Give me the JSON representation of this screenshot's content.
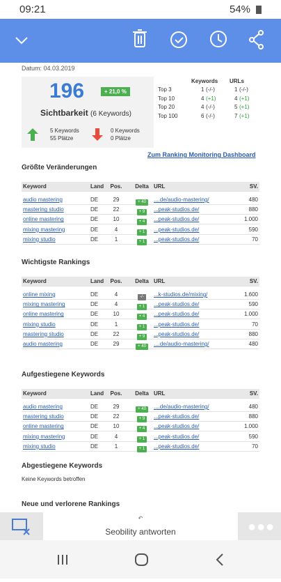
{
  "status": {
    "time": "09:21",
    "battery": "54%"
  },
  "email": {
    "date": "Datum: 04.03.2019",
    "summary": {
      "score": "196",
      "change": "+ 21,0 %",
      "label": "Sichtbarkeit",
      "keywords": "(6 Keywords)",
      "up": {
        "keywords": "5 Keywords",
        "places": "55 Plätze"
      },
      "down": {
        "keywords": "0 Keywords",
        "places": "0 Plätze"
      }
    },
    "tops": {
      "headers": [
        "Keywords",
        "URLs"
      ],
      "rows": [
        [
          "Top 3",
          "1",
          "(-/-)",
          "1",
          "(-/-)"
        ],
        [
          "Top 10",
          "4",
          "(+1)",
          "4",
          "(+1)"
        ],
        [
          "Top 20",
          "4",
          "(-/-)",
          "5",
          "(+1)"
        ],
        [
          "Top 100",
          "6",
          "(-/-)",
          "7",
          "(+1)"
        ]
      ]
    },
    "dashboard_link": "Zum Ranking Monitoring Dashboard",
    "headers": [
      "Keyword",
      "Land",
      "Pos.",
      "Delta",
      "URL",
      "SV."
    ],
    "sections": [
      {
        "title": "Größte Veränderungen",
        "rows": [
          [
            "audio mastering",
            "DE",
            29,
            "+ 40",
            "....de/audio-mastering/",
            480
          ],
          [
            "mastering studio",
            "DE",
            22,
            "+ 9",
            "...peak-studios.de/",
            880
          ],
          [
            "online mastering",
            "DE",
            10,
            "+ 4",
            "...peak-studios.de/",
            "1.000"
          ],
          [
            "mixing mastering",
            "DE",
            4,
            "+ 1",
            "...peak-studios.de/",
            590
          ],
          [
            "mixing studio",
            "DE",
            1,
            "+ 1",
            "...peak-studios.de/",
            70
          ]
        ]
      },
      {
        "title": "Wichtigste Rankings",
        "rows": [
          [
            "online mixing",
            "DE",
            4,
            "-/-",
            "...k-studios.de/mixing/",
            "1.600"
          ],
          [
            "mixing mastering",
            "DE",
            4,
            "+ 1",
            "...peak-studios.de/",
            590
          ],
          [
            "online mastering",
            "DE",
            10,
            "+ 4",
            "...peak-studios.de/",
            "1.000"
          ],
          [
            "mixing studio",
            "DE",
            1,
            "+ 1",
            "...peak-studios.de/",
            70
          ],
          [
            "mastering studio",
            "DE",
            22,
            "+ 9",
            "...peak-studios.de/",
            880
          ],
          [
            "audio mastering",
            "DE",
            29,
            "+ 40",
            "....de/audio-mastering/",
            480
          ]
        ]
      },
      {
        "title": "Aufgestiegene Keywords",
        "rows": [
          [
            "audio mastering",
            "DE",
            29,
            "+ 40",
            "....de/audio-mastering/",
            480
          ],
          [
            "mastering studio",
            "DE",
            22,
            "+ 9",
            "...peak-studios.de/",
            880
          ],
          [
            "online mastering",
            "DE",
            10,
            "+ 4",
            "...peak-studios.de/",
            "1.000"
          ],
          [
            "mixing mastering",
            "DE",
            4,
            "+ 1",
            "...peak-studios.de/",
            590
          ],
          [
            "mixing studio",
            "DE",
            1,
            "+ 1",
            "...peak-studios.de/",
            70
          ]
        ]
      }
    ],
    "declined": {
      "title": "Abgestiegene Keywords",
      "text": "Keine Keywords betroffen"
    },
    "new_lost": {
      "title": "Neue und verlorene Rankings"
    }
  },
  "reply": "Seobility antworten"
}
